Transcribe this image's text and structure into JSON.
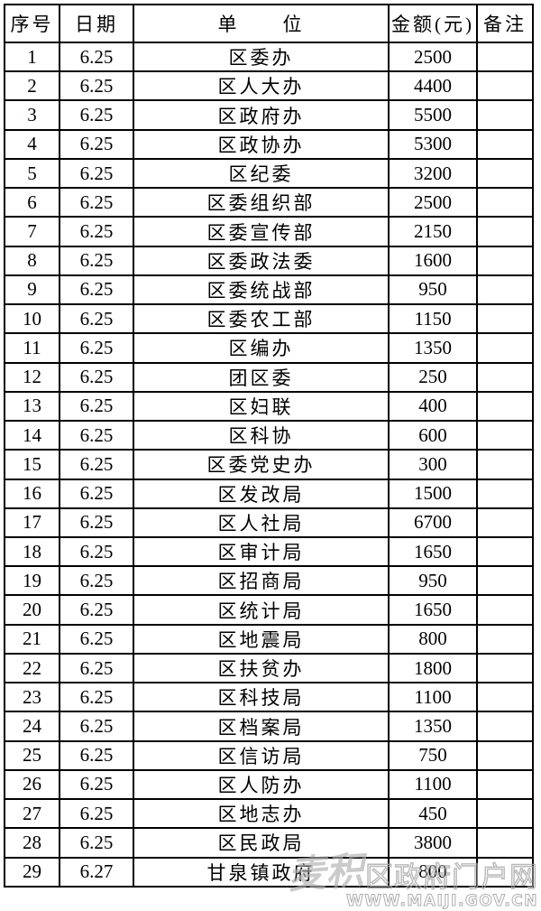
{
  "table": {
    "columns": [
      "序号",
      "日期",
      "单　　位",
      "金额(元)",
      "备注"
    ],
    "rows": [
      {
        "seq": "1",
        "date": "6.25",
        "unit": "区委办",
        "amount": "2500",
        "note": ""
      },
      {
        "seq": "2",
        "date": "6.25",
        "unit": "区人大办",
        "amount": "4400",
        "note": ""
      },
      {
        "seq": "3",
        "date": "6.25",
        "unit": "区政府办",
        "amount": "5500",
        "note": ""
      },
      {
        "seq": "4",
        "date": "6.25",
        "unit": "区政协办",
        "amount": "5300",
        "note": ""
      },
      {
        "seq": "5",
        "date": "6.25",
        "unit": "区纪委",
        "amount": "3200",
        "note": ""
      },
      {
        "seq": "6",
        "date": "6.25",
        "unit": "区委组织部",
        "amount": "2500",
        "note": ""
      },
      {
        "seq": "7",
        "date": "6.25",
        "unit": "区委宣传部",
        "amount": "2150",
        "note": ""
      },
      {
        "seq": "8",
        "date": "6.25",
        "unit": "区委政法委",
        "amount": "1600",
        "note": ""
      },
      {
        "seq": "9",
        "date": "6.25",
        "unit": "区委统战部",
        "amount": "950",
        "note": ""
      },
      {
        "seq": "10",
        "date": "6.25",
        "unit": "区委农工部",
        "amount": "1150",
        "note": ""
      },
      {
        "seq": "11",
        "date": "6.25",
        "unit": "区编办",
        "amount": "1350",
        "note": ""
      },
      {
        "seq": "12",
        "date": "6.25",
        "unit": "团区委",
        "amount": "250",
        "note": ""
      },
      {
        "seq": "13",
        "date": "6.25",
        "unit": "区妇联",
        "amount": "400",
        "note": ""
      },
      {
        "seq": "14",
        "date": "6.25",
        "unit": "区科协",
        "amount": "600",
        "note": ""
      },
      {
        "seq": "15",
        "date": "6.25",
        "unit": "区委党史办",
        "amount": "300",
        "note": ""
      },
      {
        "seq": "16",
        "date": "6.25",
        "unit": "区发改局",
        "amount": "1500",
        "note": ""
      },
      {
        "seq": "17",
        "date": "6.25",
        "unit": "区人社局",
        "amount": "6700",
        "note": ""
      },
      {
        "seq": "18",
        "date": "6.25",
        "unit": "区审计局",
        "amount": "1650",
        "note": ""
      },
      {
        "seq": "19",
        "date": "6.25",
        "unit": "区招商局",
        "amount": "950",
        "note": ""
      },
      {
        "seq": "20",
        "date": "6.25",
        "unit": "区统计局",
        "amount": "1650",
        "note": ""
      },
      {
        "seq": "21",
        "date": "6.25",
        "unit": "区地震局",
        "amount": "800",
        "note": ""
      },
      {
        "seq": "22",
        "date": "6.25",
        "unit": "区扶贫办",
        "amount": "1800",
        "note": ""
      },
      {
        "seq": "23",
        "date": "6.25",
        "unit": "区科技局",
        "amount": "1100",
        "note": ""
      },
      {
        "seq": "24",
        "date": "6.25",
        "unit": "区档案局",
        "amount": "1350",
        "note": ""
      },
      {
        "seq": "25",
        "date": "6.25",
        "unit": "区信访局",
        "amount": "750",
        "note": ""
      },
      {
        "seq": "26",
        "date": "6.25",
        "unit": "区人防办",
        "amount": "1100",
        "note": ""
      },
      {
        "seq": "27",
        "date": "6.25",
        "unit": "区地志办",
        "amount": "450",
        "note": ""
      },
      {
        "seq": "28",
        "date": "6.25",
        "unit": "区民政局",
        "amount": "3800",
        "note": ""
      },
      {
        "seq": "29",
        "date": "6.27",
        "unit": "甘泉镇政府",
        "amount": "800",
        "note": ""
      }
    ]
  },
  "watermark": {
    "logo_text": "麦积",
    "site_text": "区政府门户网",
    "url": "WWW.MAIJI.GOV.CN"
  },
  "colors": {
    "border": "#000000",
    "text": "#000000",
    "watermark_gray": "#a8a8a8"
  }
}
